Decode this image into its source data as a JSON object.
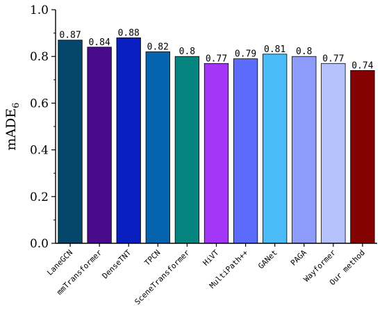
{
  "chart_data": {
    "type": "bar",
    "ylabel": {
      "main": "mADE",
      "sub": "6"
    },
    "ylim": [
      0,
      1.0
    ],
    "yticks": [
      "0.0",
      "0.2",
      "0.4",
      "0.6",
      "0.8",
      "1.0"
    ],
    "grid": false,
    "categories": [
      "LaneGCN",
      "mmTransformer",
      "DenseTNT",
      "TPCN",
      "SceneTransformer",
      "HiVT",
      "MultiPath++",
      "GANet",
      "PAGA",
      "Wayformer",
      "Our method"
    ],
    "values": [
      0.87,
      0.84,
      0.88,
      0.82,
      0.8,
      0.77,
      0.79,
      0.81,
      0.8,
      0.77,
      0.74
    ],
    "value_labels": [
      "0.87",
      "0.84",
      "0.88",
      "0.82",
      "0.8",
      "0.77",
      "0.79",
      "0.81",
      "0.8",
      "0.77",
      "0.74"
    ],
    "colors": [
      "#04476b",
      "#4a0a8c",
      "#0a1fbf",
      "#0564ad",
      "#068580",
      "#a436f7",
      "#5b6bfc",
      "#4cbcf8",
      "#8d9cfc",
      "#b6c2fb",
      "#840202"
    ],
    "label_colors": [
      "#000000",
      "#000000",
      "#000000",
      "#000000",
      "#000000",
      "#000000",
      "#000000",
      "#000000",
      "#000000",
      "#000000",
      "#ff0000"
    ]
  }
}
